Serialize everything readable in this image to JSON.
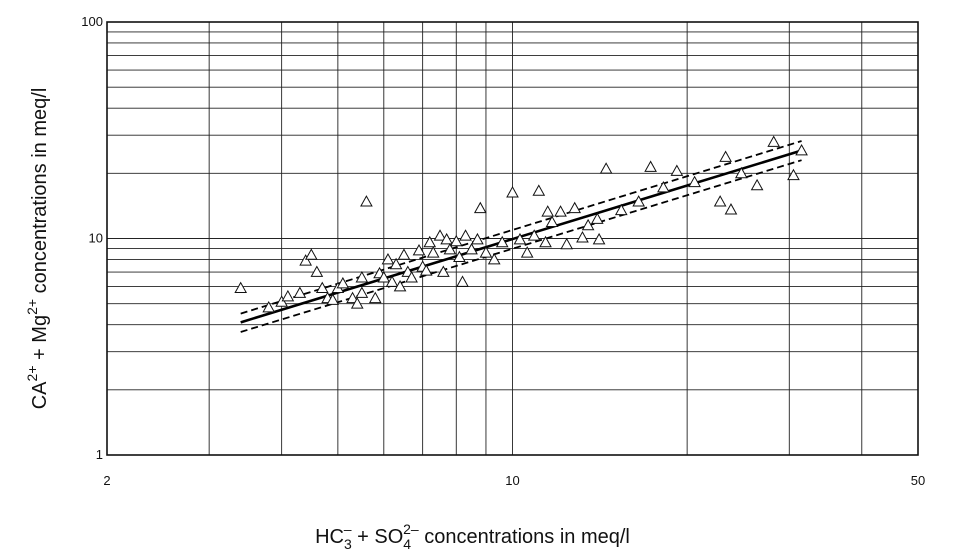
{
  "chart_data": {
    "type": "scatter",
    "title": "",
    "xlabel": {
      "parts": [
        {
          "t": "HC",
          "v": "base"
        },
        {
          "t": "3",
          "v": "sub"
        },
        {
          "t": "–",
          "v": "sup"
        },
        {
          "t": " + SO",
          "v": "base"
        },
        {
          "t": "4",
          "v": "sub"
        },
        {
          "t": "2–",
          "v": "sup"
        },
        {
          "t": " concentrations in meq/l",
          "v": "base"
        }
      ]
    },
    "ylabel": {
      "parts": [
        {
          "t": "CA",
          "v": "base"
        },
        {
          "t": "2+",
          "v": "sup"
        },
        {
          "t": " + Mg",
          "v": "base"
        },
        {
          "t": "2+",
          "v": "sup"
        },
        {
          "t": " concentrations in meq/l",
          "v": "base"
        }
      ]
    },
    "x_scale": "log",
    "y_scale": "log",
    "xlim": [
      2,
      50
    ],
    "ylim": [
      1,
      100
    ],
    "x_ticks": [
      {
        "value": 2,
        "label": "2"
      },
      {
        "value": 10,
        "label": "10"
      },
      {
        "value": 50,
        "label": "50"
      }
    ],
    "y_ticks": [
      {
        "value": 1,
        "label": "1"
      },
      {
        "value": 10,
        "label": "10"
      },
      {
        "value": 100,
        "label": "100"
      }
    ],
    "grid": true,
    "x_gridlines": [
      2,
      3,
      4,
      5,
      6,
      7,
      8,
      9,
      10,
      20,
      30,
      40,
      50
    ],
    "y_gridlines": [
      1,
      2,
      3,
      4,
      5,
      6,
      7,
      8,
      9,
      10,
      20,
      30,
      40,
      50,
      60,
      70,
      80,
      90,
      100
    ],
    "marker": "open-triangle",
    "points": [
      [
        3.4,
        5.9
      ],
      [
        3.8,
        4.8
      ],
      [
        4.0,
        5.1
      ],
      [
        4.1,
        5.4
      ],
      [
        4.3,
        5.6
      ],
      [
        4.4,
        7.9
      ],
      [
        4.5,
        8.4
      ],
      [
        4.6,
        7.0
      ],
      [
        4.7,
        5.9
      ],
      [
        4.8,
        5.3
      ],
      [
        4.9,
        5.2
      ],
      [
        5.0,
        5.9
      ],
      [
        5.1,
        6.2
      ],
      [
        5.3,
        5.3
      ],
      [
        5.4,
        5.0
      ],
      [
        5.5,
        5.6
      ],
      [
        5.5,
        6.6
      ],
      [
        5.6,
        14.8
      ],
      [
        5.8,
        5.3
      ],
      [
        5.9,
        6.9
      ],
      [
        6.0,
        6.6
      ],
      [
        6.1,
        8.0
      ],
      [
        6.2,
        6.3
      ],
      [
        6.3,
        7.6
      ],
      [
        6.4,
        6.0
      ],
      [
        6.5,
        8.4
      ],
      [
        6.6,
        7.0
      ],
      [
        6.7,
        6.6
      ],
      [
        6.9,
        8.8
      ],
      [
        7.0,
        7.4
      ],
      [
        7.1,
        7.1
      ],
      [
        7.2,
        9.6
      ],
      [
        7.3,
        8.6
      ],
      [
        7.5,
        10.3
      ],
      [
        7.6,
        7.0
      ],
      [
        7.7,
        9.9
      ],
      [
        7.8,
        8.9
      ],
      [
        8.0,
        9.7
      ],
      [
        8.1,
        8.2
      ],
      [
        8.2,
        6.3
      ],
      [
        8.3,
        10.3
      ],
      [
        8.5,
        8.9
      ],
      [
        8.7,
        9.9
      ],
      [
        8.8,
        13.8
      ],
      [
        9.0,
        8.6
      ],
      [
        9.3,
        8.0
      ],
      [
        9.6,
        9.6
      ],
      [
        10.0,
        16.3
      ],
      [
        10.3,
        9.9
      ],
      [
        10.6,
        8.6
      ],
      [
        10.9,
        10.3
      ],
      [
        11.1,
        16.6
      ],
      [
        11.4,
        9.6
      ],
      [
        11.5,
        13.3
      ],
      [
        11.7,
        11.9
      ],
      [
        12.1,
        13.3
      ],
      [
        12.4,
        9.4
      ],
      [
        12.8,
        13.8
      ],
      [
        13.2,
        10.1
      ],
      [
        13.5,
        11.5
      ],
      [
        14.0,
        12.3
      ],
      [
        14.1,
        9.9
      ],
      [
        14.5,
        21.0
      ],
      [
        15.4,
        13.5
      ],
      [
        16.5,
        14.8
      ],
      [
        17.3,
        21.4
      ],
      [
        18.2,
        17.2
      ],
      [
        19.2,
        20.5
      ],
      [
        20.6,
        18.2
      ],
      [
        22.8,
        14.8
      ],
      [
        23.3,
        23.8
      ],
      [
        23.8,
        13.6
      ],
      [
        24.8,
        20.0
      ],
      [
        26.4,
        17.6
      ],
      [
        28.2,
        27.9
      ],
      [
        30.5,
        19.6
      ],
      [
        31.5,
        25.5
      ]
    ],
    "lines": [
      {
        "style": "solid",
        "from": [
          3.4,
          4.1
        ],
        "to": [
          31.5,
          25.5
        ]
      },
      {
        "style": "dashed",
        "from": [
          3.4,
          4.5
        ],
        "to": [
          31.5,
          28.2
        ]
      },
      {
        "style": "dashed",
        "from": [
          3.4,
          3.7
        ],
        "to": [
          31.5,
          23.0
        ]
      }
    ]
  }
}
